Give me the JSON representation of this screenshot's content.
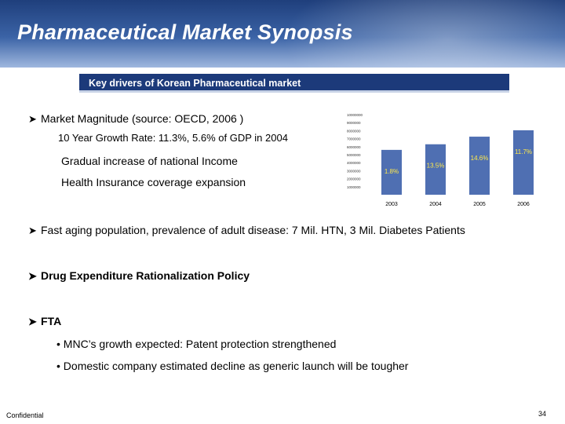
{
  "header": {
    "title": "Pharmaceutical Market Synopsis"
  },
  "banner": {
    "text": "Key drivers of Korean Pharmaceutical market"
  },
  "bullets": {
    "market_magnitude": "Market Magnitude (source: OECD, 2006 )",
    "growth_rate": "10 Year Growth Rate: 11.3%, 5.6% of GDP in 2004",
    "income": "Gradual increase of national Income",
    "insurance": "Health Insurance coverage expansion",
    "aging": "Fast aging population, prevalence of adult disease: 7 Mil. HTN, 3 Mil. Diabetes Patients",
    "drug_policy": "Drug Expenditure Rationalization Policy",
    "fta": "FTA",
    "fta_items": [
      "• MNC’s growth expected: Patent protection strengthened",
      "• Domestic company estimated decline as generic launch will be tougher"
    ]
  },
  "chart_data": {
    "type": "bar",
    "categories": [
      "2003",
      "2004",
      "2005",
      "2006"
    ],
    "values": [
      5600000,
      6300000,
      7250000,
      8050000
    ],
    "data_labels": [
      "1.8%",
      "13.5%",
      "14.6%",
      "11.7%"
    ],
    "y_tick_labels": [
      "1000000",
      "2000000",
      "3000000",
      "4000000",
      "5000000",
      "6000000",
      "7000000",
      "8000000",
      "9000000",
      "10000000"
    ],
    "ylim": [
      0,
      10000000
    ],
    "bar_color": "#4f6fb2",
    "label_color": "#ffe94a"
  },
  "footer": {
    "left": "Confidential",
    "page": "34"
  }
}
